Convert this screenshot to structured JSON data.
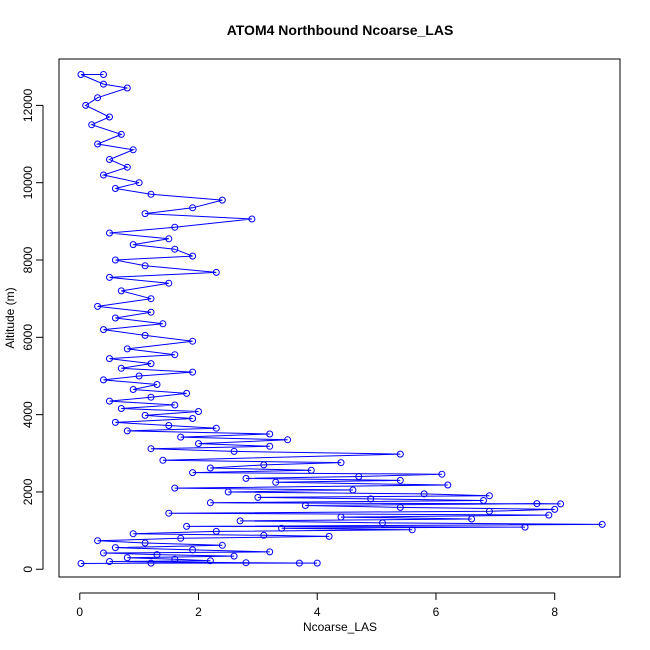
{
  "chart_data": {
    "type": "scatter",
    "title": "ATOM4 Northbound Ncoarse_LAS",
    "xlabel": "Ncoarse_LAS",
    "ylabel": "Altitude (m)",
    "xlim": [
      -0.35,
      9.1
    ],
    "ylim": [
      -200,
      13200
    ],
    "xticks": [
      0,
      2,
      4,
      6,
      8
    ],
    "yticks": [
      0,
      2000,
      4000,
      6000,
      8000,
      10000,
      12000
    ],
    "grid": false,
    "legend": "none",
    "style": "points connected by lines (type b), open circles",
    "series": [
      {
        "color": "#0000ff",
        "points": [
          [
            0.02,
            150
          ],
          [
            1.2,
            160
          ],
          [
            3.7,
            160
          ],
          [
            4.0,
            160
          ],
          [
            2.8,
            170
          ],
          [
            0.5,
            200
          ],
          [
            2.2,
            220
          ],
          [
            1.6,
            260
          ],
          [
            0.8,
            300
          ],
          [
            2.6,
            340
          ],
          [
            1.3,
            380
          ],
          [
            0.4,
            420
          ],
          [
            3.2,
            450
          ],
          [
            1.9,
            500
          ],
          [
            0.6,
            560
          ],
          [
            2.4,
            620
          ],
          [
            1.1,
            680
          ],
          [
            0.3,
            740
          ],
          [
            1.7,
            800
          ],
          [
            4.2,
            850
          ],
          [
            3.1,
            880
          ],
          [
            0.9,
            920
          ],
          [
            2.3,
            980
          ],
          [
            5.6,
            1020
          ],
          [
            3.4,
            1060
          ],
          [
            7.5,
            1090
          ],
          [
            1.8,
            1110
          ],
          [
            8.8,
            1160
          ],
          [
            5.1,
            1200
          ],
          [
            2.7,
            1250
          ],
          [
            6.6,
            1300
          ],
          [
            4.4,
            1350
          ],
          [
            7.9,
            1400
          ],
          [
            1.5,
            1450
          ],
          [
            6.9,
            1500
          ],
          [
            8.0,
            1550
          ],
          [
            5.4,
            1600
          ],
          [
            3.8,
            1650
          ],
          [
            7.7,
            1700
          ],
          [
            8.1,
            1690
          ],
          [
            2.2,
            1720
          ],
          [
            6.8,
            1780
          ],
          [
            4.9,
            1820
          ],
          [
            3.0,
            1860
          ],
          [
            6.9,
            1900
          ],
          [
            5.8,
            1950
          ],
          [
            2.5,
            2000
          ],
          [
            4.6,
            2050
          ],
          [
            1.6,
            2100
          ],
          [
            6.2,
            2180
          ],
          [
            3.3,
            2250
          ],
          [
            5.4,
            2300
          ],
          [
            2.8,
            2350
          ],
          [
            4.7,
            2400
          ],
          [
            6.1,
            2460
          ],
          [
            1.9,
            2500
          ],
          [
            3.9,
            2560
          ],
          [
            2.2,
            2620
          ],
          [
            3.1,
            2700
          ],
          [
            4.4,
            2760
          ],
          [
            1.4,
            2820
          ],
          [
            5.4,
            2980
          ],
          [
            2.6,
            3050
          ],
          [
            1.2,
            3120
          ],
          [
            3.2,
            3180
          ],
          [
            2.0,
            3250
          ],
          [
            3.5,
            3350
          ],
          [
            1.7,
            3420
          ],
          [
            3.2,
            3500
          ],
          [
            0.8,
            3580
          ],
          [
            2.3,
            3650
          ],
          [
            1.5,
            3720
          ],
          [
            0.6,
            3800
          ],
          [
            1.9,
            3900
          ],
          [
            1.1,
            3980
          ],
          [
            2.0,
            4080
          ],
          [
            0.7,
            4160
          ],
          [
            1.6,
            4250
          ],
          [
            0.5,
            4350
          ],
          [
            1.2,
            4450
          ],
          [
            1.8,
            4550
          ],
          [
            0.9,
            4650
          ],
          [
            1.3,
            4780
          ],
          [
            0.4,
            4900
          ],
          [
            1.0,
            5000
          ],
          [
            1.9,
            5100
          ],
          [
            0.7,
            5200
          ],
          [
            1.2,
            5320
          ],
          [
            0.5,
            5450
          ],
          [
            1.6,
            5550
          ],
          [
            0.8,
            5700
          ],
          [
            1.9,
            5900
          ],
          [
            1.1,
            6050
          ],
          [
            0.4,
            6200
          ],
          [
            1.4,
            6350
          ],
          [
            0.6,
            6500
          ],
          [
            1.2,
            6650
          ],
          [
            0.3,
            6800
          ],
          [
            1.2,
            7000
          ],
          [
            0.7,
            7200
          ],
          [
            1.5,
            7400
          ],
          [
            0.5,
            7550
          ],
          [
            2.3,
            7680
          ],
          [
            1.1,
            7850
          ],
          [
            0.6,
            8000
          ],
          [
            1.9,
            8100
          ],
          [
            1.6,
            8280
          ],
          [
            0.9,
            8400
          ],
          [
            1.5,
            8550
          ],
          [
            0.5,
            8700
          ],
          [
            1.6,
            8850
          ],
          [
            2.9,
            9060
          ],
          [
            1.1,
            9200
          ],
          [
            1.9,
            9350
          ],
          [
            2.4,
            9550
          ],
          [
            1.2,
            9700
          ],
          [
            0.6,
            9850
          ],
          [
            1.0,
            10000
          ],
          [
            0.4,
            10200
          ],
          [
            0.8,
            10400
          ],
          [
            0.5,
            10600
          ],
          [
            0.9,
            10850
          ],
          [
            0.3,
            11000
          ],
          [
            0.7,
            11250
          ],
          [
            0.2,
            11500
          ],
          [
            0.5,
            11700
          ],
          [
            0.1,
            12000
          ],
          [
            0.3,
            12200
          ],
          [
            0.8,
            12450
          ],
          [
            0.4,
            12550
          ],
          [
            0.02,
            12800
          ],
          [
            0.4,
            12800
          ]
        ]
      }
    ]
  }
}
